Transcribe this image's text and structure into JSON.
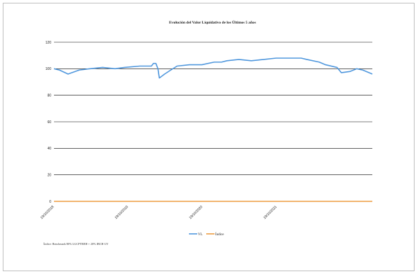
{
  "chart_data": {
    "type": "line",
    "title": "Evolución del Valor Liquidativo de los Últimos 5 años",
    "ylim": [
      0,
      120
    ],
    "yticks": [
      0,
      20,
      40,
      60,
      80,
      100,
      120
    ],
    "grid": "horizontal",
    "x_tick_labels": [
      "19/10/2018",
      "19/10/2019",
      "19/10/2020",
      "19/10/2021"
    ],
    "legend": {
      "position": "bottom",
      "entries": [
        "VL",
        "Índice"
      ]
    },
    "series": [
      {
        "name": "VL",
        "color": "#4f97dd",
        "x": [
          "2018-10-19",
          "2018-11-15",
          "2018-12-27",
          "2019-02-20",
          "2019-04-15",
          "2019-06-15",
          "2019-08-15",
          "2019-10-01",
          "2019-12-15",
          "2020-02-10",
          "2020-02-20",
          "2020-03-03",
          "2020-03-13",
          "2020-03-20",
          "2020-04-15",
          "2020-05-15",
          "2020-06-15",
          "2020-08-15",
          "2020-10-15",
          "2020-12-15",
          "2021-01-20",
          "2021-02-15",
          "2021-04-15",
          "2021-06-15",
          "2021-08-15",
          "2021-10-15",
          "2021-12-15",
          "2022-02-15",
          "2022-03-15",
          "2022-05-15",
          "2022-06-15",
          "2022-08-10",
          "2022-09-01",
          "2022-10-15",
          "2022-11-15",
          "2022-12-15",
          "2023-01-31"
        ],
        "values": [
          100,
          99,
          96,
          99,
          100,
          101,
          100,
          101,
          102,
          102,
          104,
          104,
          100,
          93,
          96,
          99,
          102,
          103,
          103,
          105,
          105,
          106,
          107,
          106,
          107,
          108,
          108,
          108,
          107,
          105,
          103,
          101,
          97,
          98,
          100,
          99,
          96
        ]
      },
      {
        "name": "Índice",
        "color": "#ed9c3f",
        "x": [
          "2018-10-19",
          "2023-01-31"
        ],
        "values": [
          0,
          0
        ]
      }
    ]
  },
  "note": "Índice: Benchmark 80% LGCPTREH + 20% IBCH GY"
}
